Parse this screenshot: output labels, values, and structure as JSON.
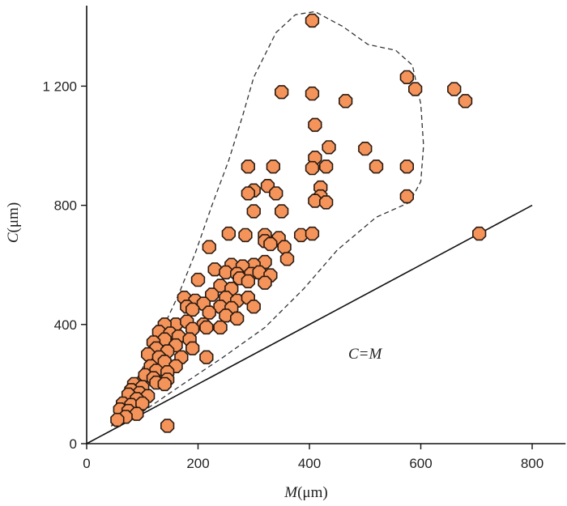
{
  "chart_data": {
    "type": "scatter",
    "title": "",
    "xlabel": {
      "var": "M",
      "unit": "(μm)"
    },
    "ylabel": {
      "var": "C",
      "unit": "(μm)"
    },
    "xlim": [
      0,
      860
    ],
    "ylim": [
      0,
      1470
    ],
    "x_ticks": [
      0,
      200,
      400,
      600,
      800
    ],
    "x_tick_labels": [
      "0",
      "200",
      "400",
      "600",
      "800"
    ],
    "y_ticks": [
      0,
      400,
      800,
      1200
    ],
    "y_tick_labels": [
      "0",
      "400",
      "800",
      "1 200"
    ],
    "grid": false,
    "reference_line": {
      "label": "C=M",
      "from": [
        0,
        0
      ],
      "to": [
        800,
        800
      ]
    },
    "envelope": "dashed",
    "marker_color": "#F4935A",
    "marker_edge": "#2a1a10",
    "points": [
      [
        405,
        1420
      ],
      [
        575,
        1230
      ],
      [
        590,
        1190
      ],
      [
        660,
        1190
      ],
      [
        680,
        1150
      ],
      [
        350,
        1180
      ],
      [
        405,
        1175
      ],
      [
        465,
        1150
      ],
      [
        410,
        1070
      ],
      [
        500,
        990
      ],
      [
        435,
        995
      ],
      [
        410,
        960
      ],
      [
        520,
        930
      ],
      [
        575,
        930
      ],
      [
        290,
        930
      ],
      [
        335,
        930
      ],
      [
        430,
        930
      ],
      [
        405,
        925
      ],
      [
        420,
        860
      ],
      [
        325,
        865
      ],
      [
        300,
        850
      ],
      [
        290,
        840
      ],
      [
        340,
        840
      ],
      [
        420,
        830
      ],
      [
        575,
        830
      ],
      [
        410,
        815
      ],
      [
        430,
        810
      ],
      [
        350,
        780
      ],
      [
        300,
        780
      ],
      [
        255,
        705
      ],
      [
        285,
        700
      ],
      [
        320,
        700
      ],
      [
        385,
        700
      ],
      [
        405,
        705
      ],
      [
        345,
        690
      ],
      [
        320,
        680
      ],
      [
        330,
        670
      ],
      [
        355,
        660
      ],
      [
        220,
        660
      ],
      [
        360,
        620
      ],
      [
        320,
        610
      ],
      [
        300,
        600
      ],
      [
        260,
        600
      ],
      [
        280,
        595
      ],
      [
        230,
        585
      ],
      [
        250,
        575
      ],
      [
        270,
        570
      ],
      [
        295,
        570
      ],
      [
        310,
        575
      ],
      [
        330,
        565
      ],
      [
        275,
        555
      ],
      [
        290,
        545
      ],
      [
        320,
        540
      ],
      [
        200,
        550
      ],
      [
        240,
        530
      ],
      [
        260,
        520
      ],
      [
        225,
        500
      ],
      [
        250,
        490
      ],
      [
        270,
        480
      ],
      [
        290,
        490
      ],
      [
        175,
        490
      ],
      [
        195,
        480
      ],
      [
        210,
        470
      ],
      [
        240,
        460
      ],
      [
        260,
        455
      ],
      [
        300,
        460
      ],
      [
        180,
        460
      ],
      [
        190,
        450
      ],
      [
        220,
        440
      ],
      [
        250,
        430
      ],
      [
        270,
        420
      ],
      [
        160,
        400
      ],
      [
        180,
        410
      ],
      [
        140,
        400
      ],
      [
        210,
        400
      ],
      [
        190,
        385
      ],
      [
        215,
        390
      ],
      [
        240,
        390
      ],
      [
        130,
        375
      ],
      [
        150,
        370
      ],
      [
        165,
        360
      ],
      [
        185,
        350
      ],
      [
        140,
        350
      ],
      [
        120,
        340
      ],
      [
        160,
        330
      ],
      [
        190,
        320
      ],
      [
        125,
        320
      ],
      [
        145,
        310
      ],
      [
        110,
        300
      ],
      [
        130,
        290
      ],
      [
        170,
        290
      ],
      [
        215,
        290
      ],
      [
        140,
        275
      ],
      [
        115,
        260
      ],
      [
        160,
        260
      ],
      [
        125,
        245
      ],
      [
        145,
        240
      ],
      [
        105,
        230
      ],
      [
        120,
        220
      ],
      [
        145,
        215
      ],
      [
        85,
        200
      ],
      [
        100,
        190
      ],
      [
        125,
        205
      ],
      [
        140,
        200
      ],
      [
        80,
        180
      ],
      [
        95,
        170
      ],
      [
        110,
        160
      ],
      [
        75,
        165
      ],
      [
        90,
        150
      ],
      [
        65,
        135
      ],
      [
        80,
        130
      ],
      [
        100,
        135
      ],
      [
        60,
        115
      ],
      [
        75,
        110
      ],
      [
        90,
        100
      ],
      [
        70,
        90
      ],
      [
        55,
        80
      ],
      [
        145,
        60
      ],
      [
        705,
        705
      ]
    ]
  }
}
